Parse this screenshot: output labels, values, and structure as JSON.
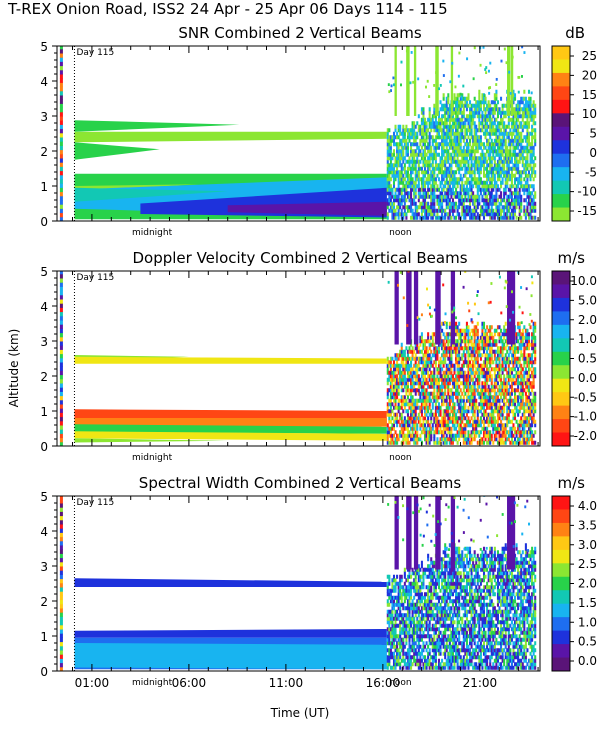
{
  "page_title": "T-REX Onion Road, ISS2  24 Apr - 25 Apr 06 Days 114 - 115",
  "xlabel": "Time (UT)",
  "ylabel": "Altitude (km)",
  "x_tick_labels": [
    "01:00",
    "06:00",
    "11:00",
    "16:00",
    "21:00"
  ],
  "x_tick_values": [
    1,
    6,
    11,
    16,
    21
  ],
  "x_range": [
    -0.8,
    24.1
  ],
  "midnight_label": "midnight",
  "noon_label": "noon",
  "midnight_value": 4.1,
  "noon_value": 16.9,
  "day_marker_value": 0.1,
  "day_label": "Day 115",
  "colors": {
    "white": "#ffffff",
    "dark_purple": "#5a1478",
    "purple": "#5a14a8",
    "blue": "#1e32dc",
    "blue2": "#1e6ef0",
    "sky": "#18b4f0",
    "teal": "#12c8b4",
    "green": "#28d24a",
    "lime": "#8ce632",
    "yellow": "#f0e614",
    "gold": "#ffc814",
    "orange": "#ff8214",
    "red_orange": "#ff4614",
    "red": "#ff1414"
  },
  "chart_data": [
    {
      "type": "heatmap",
      "title": "SNR Combined 2 Vertical Beams",
      "units": "dB",
      "ylim": [
        0,
        5
      ],
      "y_ticks": [
        0,
        1,
        2,
        3,
        4,
        5
      ],
      "colorbar": {
        "labels": [
          "25",
          "20",
          "15",
          "10",
          "5",
          "0",
          "-5",
          "-10",
          "-15"
        ],
        "colors": [
          "#ffc814",
          "#f0e614",
          "#ff8214",
          "#ff4614",
          "#ff1414",
          "#5a1478",
          "#5a14a8",
          "#1e32dc",
          "#1e6ef0",
          "#18b4f0",
          "#12c8b4",
          "#28d24a",
          "#8ce632"
        ]
      },
      "layers": [
        {
          "name": "upper-wedge-1",
          "color": "#28d24a",
          "points": [
            [
              0.1,
              2.88
            ],
            [
              8.6,
              2.75
            ],
            [
              0.1,
              2.55
            ]
          ]
        },
        {
          "name": "upper-wedge-2",
          "color": "#8ce632",
          "points": [
            [
              0.1,
              2.55
            ],
            [
              16.2,
              2.55
            ],
            [
              16.2,
              2.35
            ],
            [
              0.1,
              2.25
            ]
          ]
        },
        {
          "name": "upper-wedge-3",
          "color": "#28d24a",
          "points": [
            [
              0.1,
              2.25
            ],
            [
              4.5,
              2.05
            ],
            [
              0.1,
              1.75
            ]
          ]
        },
        {
          "name": "low-band-green",
          "color": "#28d24a",
          "points": [
            [
              0.1,
              1.35
            ],
            [
              16.2,
              1.35
            ],
            [
              16.2,
              0.05
            ],
            [
              0.1,
              0.05
            ]
          ]
        },
        {
          "name": "low-band-lime",
          "color": "#8ce632",
          "points": [
            [
              0.1,
              1.0
            ],
            [
              6.5,
              1.05
            ],
            [
              0.1,
              0.85
            ]
          ]
        },
        {
          "name": "low-band-sky",
          "color": "#18b4f0",
          "points": [
            [
              0.1,
              0.9
            ],
            [
              16.2,
              1.25
            ],
            [
              16.2,
              0.1
            ],
            [
              0.1,
              0.35
            ]
          ]
        },
        {
          "name": "low-band-teal",
          "color": "#12c8b4",
          "points": [
            [
              0.1,
              0.95
            ],
            [
              8.0,
              0.85
            ],
            [
              0.1,
              0.55
            ]
          ]
        },
        {
          "name": "low-band-blue",
          "color": "#1e32dc",
          "points": [
            [
              3.5,
              0.5
            ],
            [
              16.2,
              0.95
            ],
            [
              16.2,
              0.1
            ],
            [
              3.5,
              0.2
            ]
          ]
        },
        {
          "name": "low-band-purple",
          "color": "#5a14a8",
          "points": [
            [
              8.0,
              0.45
            ],
            [
              16.2,
              0.55
            ],
            [
              16.2,
              0.15
            ],
            [
              8.0,
              0.25
            ]
          ]
        }
      ],
      "noise": {
        "top_km": 3.5,
        "hi_km": 4.9,
        "mode": "snr"
      }
    },
    {
      "type": "heatmap",
      "title": "Doppler Velocity Combined 2 Vertical Beams",
      "units": "m/s",
      "ylim": [
        0,
        5
      ],
      "y_ticks": [
        0,
        1,
        2,
        3,
        4,
        5
      ],
      "colorbar": {
        "labels": [
          "10.0",
          "5.0",
          "2.0",
          "1.0",
          "0.5",
          "0.0",
          "-0.5",
          "-1.0",
          "-2.0"
        ],
        "colors": [
          "#5a1478",
          "#5a14a8",
          "#1e32dc",
          "#1e6ef0",
          "#18b4f0",
          "#12c8b4",
          "#28d24a",
          "#8ce632",
          "#f0e614",
          "#ffc814",
          "#ff8214",
          "#ff4614",
          "#ff1414"
        ]
      },
      "layers": [
        {
          "name": "band-2.5-lime",
          "color": "#8ce632",
          "points": [
            [
              0.1,
              2.6
            ],
            [
              6.0,
              2.55
            ],
            [
              0.1,
              2.4
            ]
          ]
        },
        {
          "name": "band-2.5-yellow",
          "color": "#f0e614",
          "points": [
            [
              0.1,
              2.55
            ],
            [
              16.2,
              2.5
            ],
            [
              16.2,
              2.35
            ],
            [
              0.1,
              2.35
            ]
          ]
        },
        {
          "name": "band-1.0-red",
          "color": "#ff4614",
          "points": [
            [
              0.1,
              1.05
            ],
            [
              16.2,
              1.0
            ],
            [
              16.2,
              0.65
            ],
            [
              0.1,
              0.75
            ]
          ]
        },
        {
          "name": "band-0.8-orange",
          "color": "#ff8214",
          "points": [
            [
              0.1,
              0.8
            ],
            [
              16.2,
              0.8
            ],
            [
              16.2,
              0.55
            ],
            [
              0.1,
              0.55
            ]
          ]
        },
        {
          "name": "band-0.6-green",
          "color": "#28d24a",
          "points": [
            [
              0.1,
              0.62
            ],
            [
              16.2,
              0.55
            ],
            [
              16.2,
              0.35
            ],
            [
              0.1,
              0.4
            ]
          ]
        },
        {
          "name": "band-0.4-yellow",
          "color": "#f0e614",
          "points": [
            [
              0.1,
              0.42
            ],
            [
              16.2,
              0.35
            ],
            [
              16.2,
              0.15
            ],
            [
              0.1,
              0.22
            ]
          ]
        },
        {
          "name": "band-0.2-lime",
          "color": "#8ce632",
          "points": [
            [
              0.1,
              0.22
            ],
            [
              8.0,
              0.15
            ],
            [
              0.1,
              0.1
            ]
          ]
        }
      ],
      "noise": {
        "top_km": 3.4,
        "hi_km": 4.9,
        "mode": "doppler"
      }
    },
    {
      "type": "heatmap",
      "title": "Spectral Width Combined 2 Vertical Beams",
      "units": "m/s",
      "ylim": [
        0,
        5
      ],
      "y_ticks": [
        0,
        1,
        2,
        3,
        4,
        5
      ],
      "colorbar": {
        "labels": [
          "4.0",
          "3.5",
          "3.0",
          "2.5",
          "2.0",
          "1.5",
          "1.0",
          "0.5",
          "0.0"
        ],
        "colors": [
          "#ff1414",
          "#ff4614",
          "#ff8214",
          "#ffc814",
          "#f0e614",
          "#8ce632",
          "#28d24a",
          "#12c8b4",
          "#18b4f0",
          "#1e6ef0",
          "#1e32dc",
          "#5a14a8",
          "#5a1478"
        ]
      },
      "layers": [
        {
          "name": "band-2.5-blue",
          "color": "#1e32dc",
          "points": [
            [
              0.1,
              2.65
            ],
            [
              16.2,
              2.55
            ],
            [
              16.2,
              2.4
            ],
            [
              0.1,
              2.4
            ]
          ]
        },
        {
          "name": "band-1.0-blue",
          "color": "#1e32dc",
          "points": [
            [
              0.1,
              1.15
            ],
            [
              16.2,
              1.2
            ],
            [
              16.2,
              0.95
            ],
            [
              0.1,
              0.95
            ]
          ]
        },
        {
          "name": "band-0.8-blue2",
          "color": "#1e6ef0",
          "points": [
            [
              0.1,
              0.95
            ],
            [
              16.2,
              0.95
            ],
            [
              16.2,
              0.05
            ],
            [
              0.1,
              0.05
            ]
          ]
        },
        {
          "name": "band-0.5-sky",
          "color": "#18b4f0",
          "points": [
            [
              0.1,
              0.8
            ],
            [
              16.2,
              0.75
            ],
            [
              16.2,
              0.05
            ],
            [
              0.1,
              0.1
            ]
          ]
        }
      ],
      "noise": {
        "top_km": 3.4,
        "hi_km": 4.9,
        "mode": "width"
      }
    }
  ]
}
